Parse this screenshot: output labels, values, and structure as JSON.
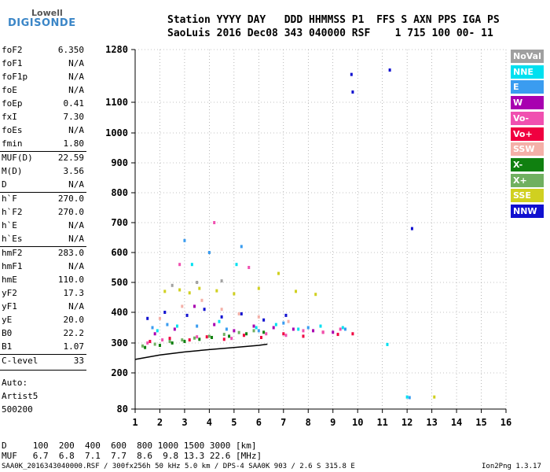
{
  "logo": {
    "line1": "Lowell",
    "line2": "DIGISONDE"
  },
  "header": {
    "line1": "Station YYYY DAY   DDD HHMMSS P1  FFS S AXN PPS IGA PS",
    "line2": "SaoLuis 2016 Dec08 343 040000 RSF    1 715 100 00- 11"
  },
  "params": [
    {
      "name": "foF2",
      "value": "6.350"
    },
    {
      "name": "foF1",
      "value": "N/A"
    },
    {
      "name": "foF1p",
      "value": "N/A"
    },
    {
      "name": "foE",
      "value": "N/A"
    },
    {
      "name": "foEp",
      "value": "0.41"
    },
    {
      "name": "fxI",
      "value": "7.30"
    },
    {
      "name": "foEs",
      "value": "N/A"
    },
    {
      "name": "fmin",
      "value": "1.80"
    },
    {
      "name": "MUF(D)",
      "value": "22.59"
    },
    {
      "name": "M(D)",
      "value": "3.56"
    },
    {
      "name": "D",
      "value": "N/A"
    },
    {
      "name": "h`F",
      "value": "270.0"
    },
    {
      "name": "h`F2",
      "value": "270.0"
    },
    {
      "name": "h`E",
      "value": "N/A"
    },
    {
      "name": "h`Es",
      "value": "N/A"
    },
    {
      "name": "hmF2",
      "value": "283.0"
    },
    {
      "name": "hmF1",
      "value": "N/A"
    },
    {
      "name": "hmE",
      "value": "110.0"
    },
    {
      "name": "yF2",
      "value": "17.3"
    },
    {
      "name": "yF1",
      "value": "N/A"
    },
    {
      "name": "yE",
      "value": "20.0"
    },
    {
      "name": "B0",
      "value": "22.2"
    },
    {
      "name": "B1",
      "value": "1.07"
    },
    {
      "name": "C-level",
      "value": "33"
    }
  ],
  "auto": {
    "line1": "Auto:",
    "line2": "Artist5",
    "line3": "500200"
  },
  "legend": [
    {
      "label": "NoVal",
      "color": "#a0a0a0"
    },
    {
      "label": "NNE",
      "color": "#00e0f0"
    },
    {
      "label": "E",
      "color": "#3a9cf0"
    },
    {
      "label": "W",
      "color": "#a800b0"
    },
    {
      "label": "Vo-",
      "color": "#f050b0"
    },
    {
      "label": "Vo+",
      "color": "#f00040"
    },
    {
      "label": "SSW",
      "color": "#f4b0a8"
    },
    {
      "label": "X-",
      "color": "#108010"
    },
    {
      "label": "X+",
      "color": "#70b060"
    },
    {
      "label": "SSE",
      "color": "#d0d020"
    },
    {
      "label": "NNW",
      "color": "#1010d0"
    }
  ],
  "mufTable": {
    "dLine": "D     100  200  400  600  800 1000 1500 3000 [km]",
    "mufLine": "MUF   6.7  6.8  7.1  7.7  8.6  9.8 13.3 22.6 [MHz]"
  },
  "footer": {
    "left": "SAA0K_2016343040000.RSF / 300fx256h 50 kHz 5.0 km / DPS-4 SAA0K 903 / 2.6 S 315.8 E",
    "right": "Ion2Png 1.3.17"
  },
  "chart_data": {
    "type": "scatter",
    "xlim": [
      1,
      16
    ],
    "ylim": [
      80,
      1280
    ],
    "xticks": [
      1,
      2,
      3,
      4,
      5,
      6,
      7,
      8,
      9,
      10,
      11,
      12,
      13,
      14,
      15,
      16
    ],
    "yticks": [
      80,
      200,
      300,
      400,
      500,
      600,
      700,
      800,
      900,
      1000,
      1100,
      1280
    ],
    "ytick_labels": [
      "80",
      "200",
      "300",
      "400",
      "500",
      "600",
      "700",
      "800",
      "900",
      "1000",
      "1100",
      "1280"
    ],
    "grid": true,
    "trace_line": {
      "x": [
        1.0,
        2.0,
        3.0,
        4.0,
        5.0,
        6.0,
        6.35
      ],
      "y": [
        245,
        260,
        270,
        278,
        285,
        292,
        296
      ]
    },
    "series": [
      {
        "name": "NNW",
        "x": [
          1.5,
          2.2,
          3.1,
          3.8,
          4.5,
          5.3,
          6.2,
          7.1,
          9.75,
          9.8,
          11.3,
          12.2
        ],
        "y": [
          380,
          400,
          390,
          410,
          385,
          395,
          375,
          390,
          1195,
          1135,
          1210,
          680
        ]
      },
      {
        "name": "Vo+",
        "x": [
          1.6,
          2.4,
          3.2,
          3.9,
          4.6,
          5.4,
          6.1,
          7.0,
          7.8,
          8.6,
          9.2,
          9.8
        ],
        "y": [
          305,
          315,
          310,
          320,
          312,
          325,
          318,
          330,
          322,
          335,
          328,
          330
        ]
      },
      {
        "name": "W",
        "x": [
          1.8,
          2.6,
          3.4,
          4.2,
          5.0,
          5.8,
          6.6,
          7.4,
          8.2,
          9.0
        ],
        "y": [
          330,
          345,
          420,
          360,
          340,
          355,
          350,
          345,
          340,
          335
        ]
      },
      {
        "name": "X-",
        "x": [
          1.4,
          2.0,
          2.5,
          3.0,
          3.6,
          4.1,
          4.8,
          5.5,
          6.2
        ],
        "y": [
          285,
          292,
          300,
          305,
          312,
          318,
          322,
          330,
          335
        ]
      },
      {
        "name": "SSE",
        "x": [
          2.2,
          2.8,
          3.2,
          3.6,
          4.3,
          5.0,
          6.0,
          6.8,
          7.5,
          8.3,
          13.1
        ],
        "y": [
          470,
          475,
          465,
          480,
          472,
          462,
          480,
          530,
          470,
          460,
          120
        ]
      },
      {
        "name": "E",
        "x": [
          1.7,
          2.3,
          3.0,
          3.5,
          4.0,
          4.7,
          5.3,
          6.0,
          7.0,
          8.0,
          9.5,
          12.1
        ],
        "y": [
          350,
          360,
          640,
          355,
          600,
          345,
          620,
          340,
          365,
          350,
          345,
          118
        ]
      },
      {
        "name": "NNE",
        "x": [
          1.9,
          2.7,
          3.3,
          4.4,
          5.1,
          5.9,
          6.7,
          7.6,
          8.5,
          9.4,
          11.2,
          12.0
        ],
        "y": [
          340,
          355,
          560,
          370,
          560,
          350,
          360,
          345,
          355,
          350,
          295,
          120
        ]
      },
      {
        "name": "Vo-",
        "x": [
          1.5,
          2.1,
          2.8,
          3.5,
          4.2,
          4.9,
          5.6,
          6.3,
          7.1,
          7.8,
          8.6,
          9.3
        ],
        "y": [
          300,
          310,
          560,
          320,
          700,
          315,
          550,
          330,
          325,
          340,
          335,
          345
        ]
      },
      {
        "name": "X+",
        "x": [
          1.3,
          1.8,
          2.4,
          2.9,
          3.4,
          4.0,
          4.6,
          5.2,
          5.8
        ],
        "y": [
          290,
          296,
          305,
          310,
          316,
          322,
          328,
          334,
          340
        ]
      },
      {
        "name": "SSW",
        "x": [
          2.0,
          2.9,
          3.7,
          4.5,
          5.2,
          6.0,
          7.2
        ],
        "y": [
          380,
          420,
          440,
          410,
          395,
          385,
          370
        ]
      },
      {
        "name": "NoVal",
        "x": [
          2.5,
          3.5,
          4.5
        ],
        "y": [
          490,
          500,
          505
        ]
      }
    ]
  }
}
